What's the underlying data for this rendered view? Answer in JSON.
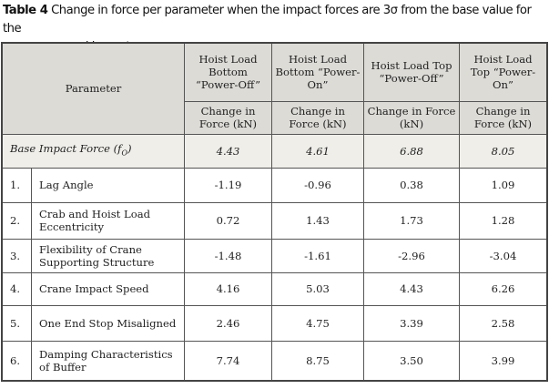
{
  "caption": {
    "label": "Table 4",
    "text_line1": "Change in force per parameter when the impact forces are 3σ from the base value for the",
    "text_line2": "second impact response"
  },
  "header": {
    "parameter": "Parameter",
    "columns": [
      "Hoist Load Bottom “Power-Off”",
      "Hoist Load Bottom “Power-On”",
      "Hoist Load Top “Power-Off”",
      "Hoist Load Top “Power-On”"
    ],
    "subheader": "Change in Force (kN)"
  },
  "base": {
    "label": "Base Impact Force (f",
    "subscript": "O",
    "label_end": ")",
    "values": [
      "4.43",
      "4.61",
      "6.88",
      "8.05"
    ]
  },
  "rows": [
    {
      "num": "1.",
      "param": "Lag Angle",
      "values": [
        "-1.19",
        "-0.96",
        "0.38",
        "1.09"
      ]
    },
    {
      "num": "2.",
      "param": "Crab and Hoist Load Eccentricity",
      "values": [
        "0.72",
        "1.43",
        "1.73",
        "1.28"
      ]
    },
    {
      "num": "3.",
      "param": "Flexibility of Crane Supporting Structure",
      "values": [
        "-1.48",
        "-1.61",
        "-2.96",
        "-3.04"
      ]
    },
    {
      "num": "4.",
      "param": "Crane Impact Speed",
      "values": [
        "4.16",
        "5.03",
        "4.43",
        "6.26"
      ]
    },
    {
      "num": "5.",
      "param": "One End Stop Misaligned",
      "values": [
        "2.46",
        "4.75",
        "3.39",
        "2.58"
      ]
    },
    {
      "num": "6.",
      "param": "Damping Characteristics of Buffer",
      "values": [
        "7.74",
        "8.75",
        "3.50",
        "3.99"
      ]
    }
  ]
}
